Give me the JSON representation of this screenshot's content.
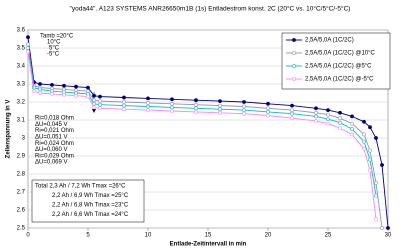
{
  "chart_data": {
    "type": "line",
    "title": "\"yoda44\". A123 SYSTEMS ANR26650m1B  (1s)  Entladestrom konst. 2C (20°C vs. 10°C/5°C/-5°C)",
    "x_label": "Entlade-Zeitintervall in min",
    "y_label": "Zellenspannung in V",
    "x": [
      0,
      0.5,
      1,
      2,
      3,
      4,
      5,
      5.5,
      6,
      8,
      10,
      12,
      14,
      16,
      18,
      20,
      22,
      24,
      25,
      26,
      27,
      28,
      28.5,
      29,
      29.5,
      30
    ],
    "series": [
      {
        "name": "2,5A/5,0A (1C/2C)",
        "color": "#000080",
        "marker": "filled-circle",
        "values": [
          3.56,
          3.31,
          3.3,
          3.295,
          3.29,
          3.285,
          3.28,
          3.235,
          3.23,
          3.225,
          3.22,
          3.215,
          3.21,
          3.205,
          3.2,
          3.19,
          3.18,
          3.165,
          3.155,
          3.14,
          3.12,
          3.09,
          3.06,
          3.0,
          2.85,
          2.5
        ]
      },
      {
        "name": "2,5A/5,0A (1C/2C) @10°C",
        "color": "#9090b8",
        "marker": "open-circle",
        "values": [
          3.52,
          3.29,
          3.28,
          3.275,
          3.27,
          3.265,
          3.26,
          3.21,
          3.205,
          3.2,
          3.195,
          3.19,
          3.185,
          3.18,
          3.175,
          3.165,
          3.155,
          3.14,
          3.13,
          3.11,
          3.08,
          3.02,
          2.93,
          2.75,
          2.5,
          null
        ]
      },
      {
        "name": "2,5A/5,0A (1C/2C) @5°C",
        "color": "#00c0c0",
        "marker": "open-circle",
        "values": [
          3.5,
          3.28,
          3.27,
          3.26,
          3.255,
          3.25,
          3.245,
          3.19,
          3.185,
          3.18,
          3.175,
          3.17,
          3.165,
          3.16,
          3.155,
          3.145,
          3.135,
          3.12,
          3.105,
          3.085,
          3.05,
          2.98,
          2.88,
          2.68,
          null,
          null
        ]
      },
      {
        "name": "2,5A/5,0A (1C/2C) @-5°C",
        "color": "#ff80ff",
        "marker": "open-circle",
        "values": [
          3.48,
          3.26,
          3.25,
          3.245,
          3.24,
          3.235,
          3.23,
          3.17,
          3.165,
          3.16,
          3.155,
          3.15,
          3.145,
          3.14,
          3.135,
          3.125,
          3.11,
          3.095,
          3.08,
          3.055,
          3.02,
          2.94,
          2.82,
          2.55,
          null,
          null
        ]
      }
    ],
    "xlim": [
      0,
      30
    ],
    "xticks": [
      0,
      5,
      10,
      15,
      20,
      25,
      30
    ],
    "ylim": [
      2.5,
      3.6
    ],
    "yticks": [
      2.5,
      2.6,
      2.7,
      2.8,
      2.9,
      3,
      3.1,
      3.2,
      3.3,
      3.4,
      3.5,
      3.6
    ],
    "grid": true,
    "legend_position": "upper-right",
    "temperature_labels": [
      "Tamb =20°C",
      "10°C",
      "5°C",
      "-5°C"
    ],
    "ri_labels": [
      "Ri=0,018 Ohm",
      "ΔU=0,045 V",
      "Ri=0,021 Ohm",
      "ΔU=0,051 V",
      "Ri=0,024 Ohm",
      "ΔU=0,060 V",
      "Ri=0,029 Ohm",
      "ΔU=0,069 V"
    ],
    "summary": [
      "Total  2,3 Ah / 7,2 Wh  Tmax =26°C",
      "2,2 Ah / 6,9 Wh  Tmax =25°C",
      "2,2 Ah / 6,8 Wh  Tmax =23°C",
      "2,2 Ah / 6,6 Wh  Tmax =24°C"
    ]
  }
}
